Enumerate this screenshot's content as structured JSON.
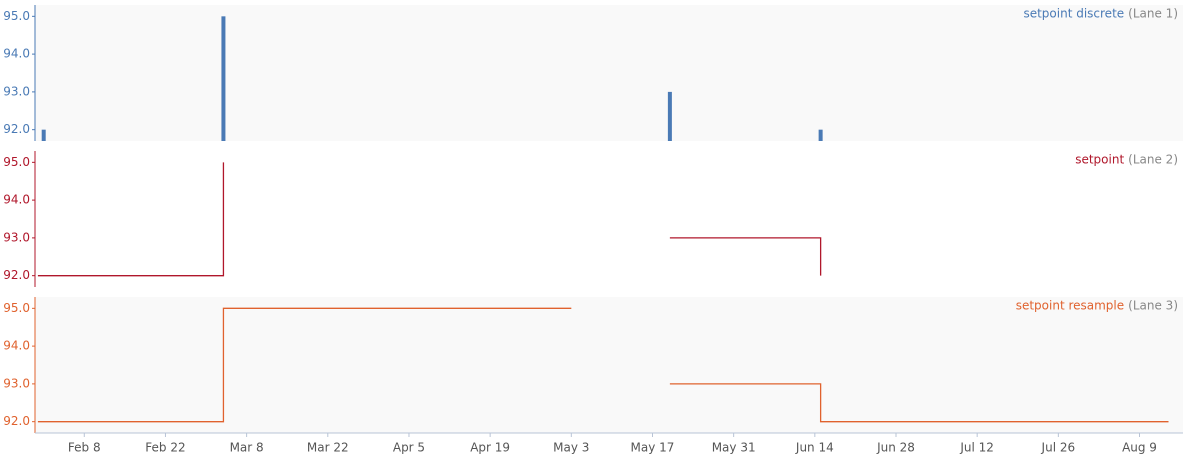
{
  "chart_data": [
    {
      "type": "bar",
      "title": "setpoint discrete",
      "subtitle": "(Lane 1)",
      "x": [
        32,
        63,
        140,
        166
      ],
      "values": [
        92,
        95,
        93,
        92
      ],
      "color": "#4a7ab5",
      "background": "#f9f9f9",
      "xlim": [
        30.5,
        228.5
      ],
      "ylim": [
        91.7,
        95.3
      ],
      "yticks": [
        {
          "value": 92,
          "label": "92.0"
        },
        {
          "value": 93,
          "label": "93.0"
        },
        {
          "value": 94,
          "label": "94.0"
        },
        {
          "value": 95,
          "label": "95.0"
        }
      ]
    },
    {
      "type": "step",
      "title": "setpoint",
      "subtitle": "(Lane 2)",
      "x": [
        31,
        63,
        101,
        140,
        166
      ],
      "values": [
        92,
        95,
        null,
        93,
        92
      ],
      "color": "#b0172b",
      "background": "#ffffff",
      "xlim": [
        30.5,
        228.5
      ],
      "ylim": [
        91.7,
        95.3
      ],
      "yticks": [
        {
          "value": 92,
          "label": "92.0"
        },
        {
          "value": 93,
          "label": "93.0"
        },
        {
          "value": 94,
          "label": "94.0"
        },
        {
          "value": 95,
          "label": "95.0"
        }
      ]
    },
    {
      "type": "step",
      "title": "setpoint resample",
      "subtitle": "(Lane 3)",
      "x": [
        31,
        63,
        123,
        131,
        140,
        166,
        226
      ],
      "values": [
        92,
        95,
        95,
        null,
        93,
        92,
        92
      ],
      "color": "#e0622e",
      "background": "#f9f9f9",
      "xlim": [
        30.5,
        228.5
      ],
      "ylim": [
        91.7,
        95.3
      ],
      "yticks": [
        {
          "value": 92,
          "label": "92.0"
        },
        {
          "value": 93,
          "label": "93.0"
        },
        {
          "value": 94,
          "label": "94.0"
        },
        {
          "value": 95,
          "label": "95.0"
        }
      ],
      "xticks": [
        {
          "value": 39,
          "label": "Feb 8"
        },
        {
          "value": 53,
          "label": "Feb 22"
        },
        {
          "value": 67,
          "label": "Mar 8"
        },
        {
          "value": 81,
          "label": "Mar 22"
        },
        {
          "value": 95,
          "label": "Apr 5"
        },
        {
          "value": 109,
          "label": "Apr 19"
        },
        {
          "value": 123,
          "label": "May 3"
        },
        {
          "value": 137,
          "label": "May 17"
        },
        {
          "value": 151,
          "label": "May 31"
        },
        {
          "value": 165,
          "label": "Jun 14"
        },
        {
          "value": 179,
          "label": "Jun 28"
        },
        {
          "value": 193,
          "label": "Jul 12"
        },
        {
          "value": 207,
          "label": "Jul 26"
        },
        {
          "value": 221,
          "label": "Aug 9"
        }
      ]
    }
  ]
}
